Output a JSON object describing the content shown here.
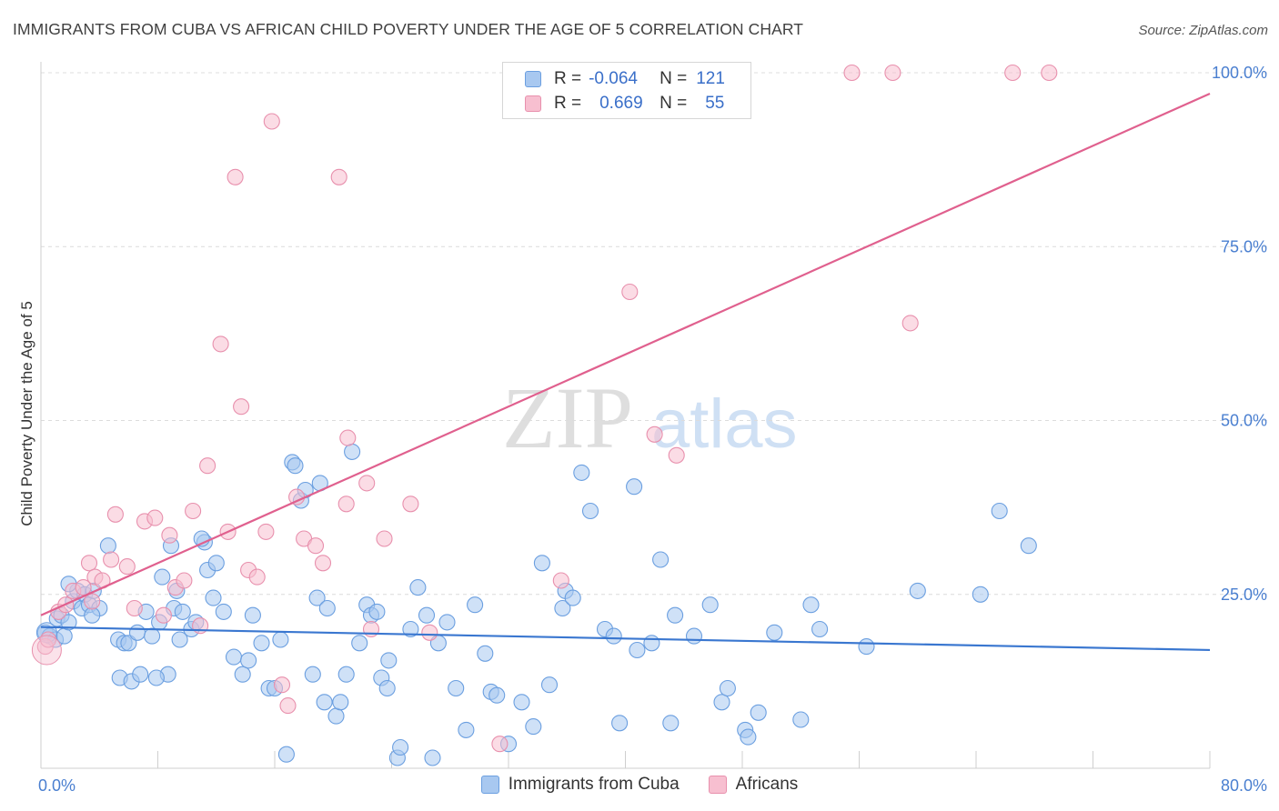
{
  "header": {
    "title": "IMMIGRANTS FROM CUBA VS AFRICAN CHILD POVERTY UNDER THE AGE OF 5 CORRELATION CHART",
    "source": "Source: ZipAtlas.com"
  },
  "watermark": {
    "zip": "ZIP",
    "atlas": "atlas"
  },
  "legend": {
    "rows": [
      {
        "r_label": "R =",
        "r_value": "-0.064",
        "n_label": "N =",
        "n_value": "121",
        "color": "#a8c8f0",
        "stroke": "#6b9fe0"
      },
      {
        "r_label": "R =",
        "r_value": "0.669",
        "n_label": "N =",
        "n_value": "55",
        "color": "#f7bfd0",
        "stroke": "#e890ad"
      }
    ]
  },
  "bottom_legend": {
    "items": [
      {
        "label": "Immigrants from Cuba",
        "color": "#a8c8f0",
        "stroke": "#6b9fe0"
      },
      {
        "label": "Africans",
        "color": "#f7bfd0",
        "stroke": "#e890ad"
      }
    ]
  },
  "chart_data": {
    "type": "scatter",
    "title": "IMMIGRANTS FROM CUBA VS AFRICAN CHILD POVERTY UNDER THE AGE OF 5 CORRELATION CHART",
    "xlabel": "",
    "ylabel": "Child Poverty Under the Age of 5",
    "xlim": [
      0,
      80
    ],
    "ylim": [
      0,
      100
    ],
    "x_tick_labels": [
      {
        "value": 0,
        "label": "0.0%"
      },
      {
        "value": 80,
        "label": "80.0%"
      }
    ],
    "y_tick_labels": [
      {
        "value": 25,
        "label": "25.0%"
      },
      {
        "value": 50,
        "label": "50.0%"
      },
      {
        "value": 75,
        "label": "75.0%"
      },
      {
        "value": 100,
        "label": "100.0%"
      }
    ],
    "grid": "horizontal dashed",
    "legend_position": "top-center",
    "series": [
      {
        "name": "Immigrants from Cuba",
        "color": "#a8c8f0",
        "stroke": "#6b9fe0",
        "trend": {
          "x": [
            0,
            80
          ],
          "y": [
            20.3,
            17.0
          ],
          "color": "#3a77d0"
        },
        "points": [
          [
            0.3,
            19.5
          ],
          [
            0.6,
            19.0
          ],
          [
            1.0,
            18.5
          ],
          [
            1.1,
            21.5
          ],
          [
            1.4,
            22.0
          ],
          [
            1.6,
            19.0
          ],
          [
            1.9,
            21.0
          ],
          [
            2.2,
            24.0
          ],
          [
            2.5,
            25.5
          ],
          [
            2.8,
            23.0
          ],
          [
            3.0,
            25.0
          ],
          [
            3.3,
            23.5
          ],
          [
            3.6,
            25.5
          ],
          [
            4.0,
            23.0
          ],
          [
            4.6,
            32.0
          ],
          [
            5.3,
            18.5
          ],
          [
            5.4,
            13.0
          ],
          [
            5.7,
            18.0
          ],
          [
            6.0,
            18.0
          ],
          [
            6.2,
            12.5
          ],
          [
            6.6,
            19.5
          ],
          [
            6.8,
            13.5
          ],
          [
            7.2,
            22.5
          ],
          [
            7.6,
            19.0
          ],
          [
            8.1,
            21.0
          ],
          [
            8.3,
            27.5
          ],
          [
            8.7,
            13.5
          ],
          [
            8.9,
            32.0
          ],
          [
            9.1,
            23.0
          ],
          [
            9.5,
            18.5
          ],
          [
            9.7,
            22.5
          ],
          [
            10.3,
            20.0
          ],
          [
            10.6,
            21.0
          ],
          [
            11.2,
            32.5
          ],
          [
            11.4,
            28.5
          ],
          [
            11.8,
            24.5
          ],
          [
            12.0,
            29.5
          ],
          [
            12.5,
            22.5
          ],
          [
            13.2,
            16.0
          ],
          [
            13.8,
            13.5
          ],
          [
            14.2,
            15.5
          ],
          [
            14.5,
            22.0
          ],
          [
            15.1,
            18.0
          ],
          [
            15.6,
            11.5
          ],
          [
            16.0,
            11.5
          ],
          [
            16.4,
            18.5
          ],
          [
            16.8,
            2.0
          ],
          [
            17.2,
            44.0
          ],
          [
            17.8,
            38.5
          ],
          [
            18.1,
            40.0
          ],
          [
            18.6,
            13.5
          ],
          [
            18.9,
            24.5
          ],
          [
            19.4,
            9.5
          ],
          [
            19.6,
            23.0
          ],
          [
            20.2,
            7.5
          ],
          [
            20.5,
            9.5
          ],
          [
            20.9,
            13.5
          ],
          [
            21.3,
            45.5
          ],
          [
            21.8,
            18.0
          ],
          [
            22.3,
            23.5
          ],
          [
            22.6,
            22.0
          ],
          [
            23.0,
            22.5
          ],
          [
            23.3,
            13.0
          ],
          [
            23.8,
            15.5
          ],
          [
            24.4,
            1.5
          ],
          [
            24.6,
            3.0
          ],
          [
            25.3,
            20.0
          ],
          [
            25.8,
            26.0
          ],
          [
            26.4,
            22.0
          ],
          [
            26.8,
            1.5
          ],
          [
            27.2,
            18.0
          ],
          [
            27.8,
            21.0
          ],
          [
            28.4,
            11.5
          ],
          [
            29.1,
            5.5
          ],
          [
            29.7,
            23.5
          ],
          [
            30.4,
            16.5
          ],
          [
            30.8,
            11.0
          ],
          [
            31.2,
            10.5
          ],
          [
            32.0,
            3.5
          ],
          [
            32.9,
            9.5
          ],
          [
            33.7,
            6.0
          ],
          [
            34.3,
            29.5
          ],
          [
            34.8,
            12.0
          ],
          [
            35.7,
            23.0
          ],
          [
            35.9,
            25.5
          ],
          [
            36.4,
            24.5
          ],
          [
            37.0,
            42.5
          ],
          [
            37.6,
            37.0
          ],
          [
            38.6,
            20.0
          ],
          [
            39.2,
            19.0
          ],
          [
            39.6,
            6.5
          ],
          [
            40.6,
            40.5
          ],
          [
            40.8,
            17.0
          ],
          [
            41.8,
            18.0
          ],
          [
            42.4,
            30.0
          ],
          [
            43.1,
            6.5
          ],
          [
            43.4,
            22.0
          ],
          [
            44.7,
            19.0
          ],
          [
            45.8,
            23.5
          ],
          [
            46.6,
            9.5
          ],
          [
            47.0,
            11.5
          ],
          [
            48.2,
            5.5
          ],
          [
            48.4,
            4.5
          ],
          [
            49.1,
            8.0
          ],
          [
            50.2,
            19.5
          ],
          [
            52.0,
            7.0
          ],
          [
            52.7,
            23.5
          ],
          [
            53.3,
            20.0
          ],
          [
            56.5,
            17.5
          ],
          [
            60.0,
            25.5
          ],
          [
            64.3,
            25.0
          ],
          [
            65.6,
            37.0
          ],
          [
            67.6,
            32.0
          ],
          [
            17.4,
            43.5
          ],
          [
            11.0,
            33.0
          ],
          [
            7.9,
            13.0
          ],
          [
            19.1,
            41.0
          ],
          [
            23.7,
            11.5
          ],
          [
            3.5,
            22.0
          ],
          [
            1.9,
            26.5
          ],
          [
            9.3,
            25.5
          ]
        ]
      },
      {
        "name": "Africans",
        "color": "#f7bfd0",
        "stroke": "#e890ad",
        "trend": {
          "x": [
            0,
            80
          ],
          "y": [
            22.0,
            97.0
          ],
          "color": "#e0608e"
        },
        "points": [
          [
            0.3,
            17.5
          ],
          [
            0.5,
            18.5
          ],
          [
            1.2,
            22.5
          ],
          [
            1.7,
            23.5
          ],
          [
            2.2,
            25.5
          ],
          [
            2.9,
            26.0
          ],
          [
            3.3,
            29.5
          ],
          [
            3.5,
            24.0
          ],
          [
            3.7,
            27.5
          ],
          [
            4.2,
            27.0
          ],
          [
            4.8,
            30.0
          ],
          [
            5.1,
            36.5
          ],
          [
            5.9,
            29.0
          ],
          [
            6.4,
            23.0
          ],
          [
            7.1,
            35.5
          ],
          [
            7.8,
            36.0
          ],
          [
            8.4,
            22.0
          ],
          [
            8.8,
            33.5
          ],
          [
            9.2,
            26.0
          ],
          [
            9.8,
            27.0
          ],
          [
            10.4,
            37.0
          ],
          [
            10.9,
            20.5
          ],
          [
            11.4,
            43.5
          ],
          [
            12.3,
            61.0
          ],
          [
            12.8,
            34.0
          ],
          [
            13.7,
            52.0
          ],
          [
            14.2,
            28.5
          ],
          [
            14.8,
            27.5
          ],
          [
            15.4,
            34.0
          ],
          [
            15.8,
            93.0
          ],
          [
            16.5,
            12.0
          ],
          [
            16.9,
            9.0
          ],
          [
            17.5,
            39.0
          ],
          [
            18.0,
            33.0
          ],
          [
            18.8,
            32.0
          ],
          [
            19.3,
            29.5
          ],
          [
            20.4,
            85.0
          ],
          [
            21.0,
            47.5
          ],
          [
            22.3,
            41.0
          ],
          [
            22.6,
            20.0
          ],
          [
            23.5,
            33.0
          ],
          [
            25.3,
            38.0
          ],
          [
            26.6,
            19.5
          ],
          [
            31.4,
            3.5
          ],
          [
            35.6,
            27.0
          ],
          [
            40.3,
            68.5
          ],
          [
            42.0,
            48.0
          ],
          [
            43.5,
            45.0
          ],
          [
            55.5,
            100.0
          ],
          [
            58.3,
            100.0
          ],
          [
            59.5,
            64.0
          ],
          [
            66.5,
            100.0
          ],
          [
            69.0,
            100.0
          ],
          [
            13.3,
            85.0
          ],
          [
            20.9,
            38.0
          ]
        ]
      }
    ]
  }
}
